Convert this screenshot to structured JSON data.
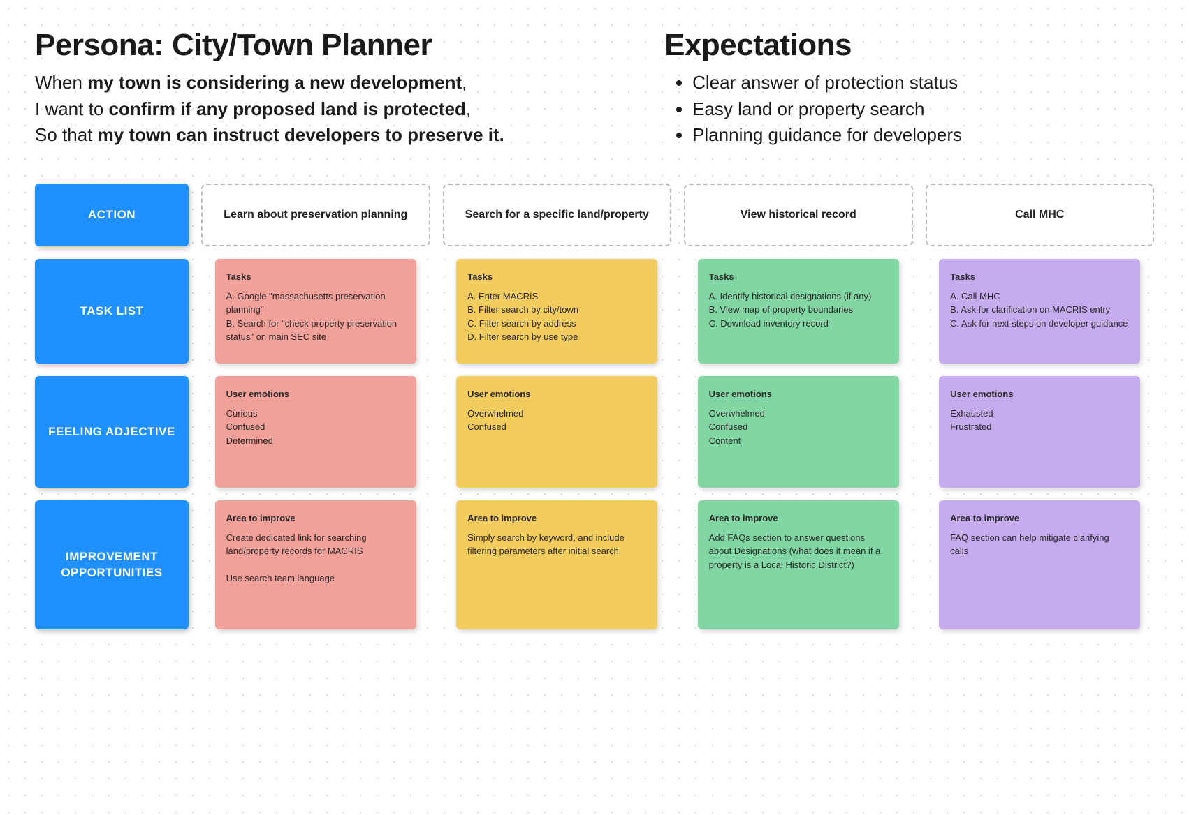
{
  "colors": {
    "accent": "#1e90ff",
    "dot_grid": "#d0d0d0",
    "action_border": "#b8b8b8",
    "note_colors": [
      "#f2a09a",
      "#f3cc60",
      "#82d6a3",
      "#c6abef"
    ]
  },
  "persona": {
    "title": "Persona: City/Town Planner",
    "line1_prefix": "When ",
    "line1_bold": "my town is considering a new development",
    "line1_suffix": ",",
    "line2_prefix": "I want to ",
    "line2_bold": "confirm if any proposed land is protected",
    "line2_suffix": ",",
    "line3_prefix": "So that ",
    "line3_bold": "my town can instruct developers to preserve it.",
    "line3_suffix": ""
  },
  "expectations": {
    "title": "Expectations",
    "items": [
      "Clear answer of protection status",
      "Easy land or property search",
      "Planning guidance for developers"
    ]
  },
  "row_labels": {
    "action": "ACTION",
    "tasks": "TASK LIST",
    "feeling": "FEELING ADJECTIVE",
    "improve": "IMPROVEMENT OPPORTUNITIES"
  },
  "columns": [
    {
      "action": "Learn about preservation planning",
      "tasks_title": "Tasks",
      "tasks_body": "A. Google \"massachusetts preservation planning\"\nB. Search for \"check property preservation status\" on main SEC site",
      "feel_title": "User emotions",
      "feel_body": "Curious\nConfused\nDetermined",
      "improve_title": "Area to improve",
      "improve_body": "Create dedicated link for searching land/property records for MACRIS\n\nUse search team language"
    },
    {
      "action": "Search for a specific land/property",
      "tasks_title": "Tasks",
      "tasks_body": "A. Enter MACRIS\nB. Filter search by city/town\nC. Filter search by address\nD. Filter search by use type",
      "feel_title": "User emotions",
      "feel_body": "Overwhelmed\nConfused",
      "improve_title": "Area to improve",
      "improve_body": "Simply search by keyword, and include filtering parameters after initial search"
    },
    {
      "action": "View historical record",
      "tasks_title": "Tasks",
      "tasks_body": "A. Identify historical designations (if any)\nB. View map of property boundaries\nC. Download inventory record",
      "feel_title": "User emotions",
      "feel_body": "Overwhelmed\nConfused\nContent",
      "improve_title": "Area to improve",
      "improve_body": "Add FAQs section to answer questions about Designations (what does it mean if a property is a Local Historic District?)"
    },
    {
      "action": "Call MHC",
      "tasks_title": "Tasks",
      "tasks_body": "A. Call MHC\nB. Ask for clarification on MACRIS entry\nC. Ask for next steps on developer guidance",
      "feel_title": "User emotions",
      "feel_body": "Exhausted\nFrustrated",
      "improve_title": "Area to improve",
      "improve_body": "FAQ section can help mitigate clarifying calls"
    }
  ]
}
